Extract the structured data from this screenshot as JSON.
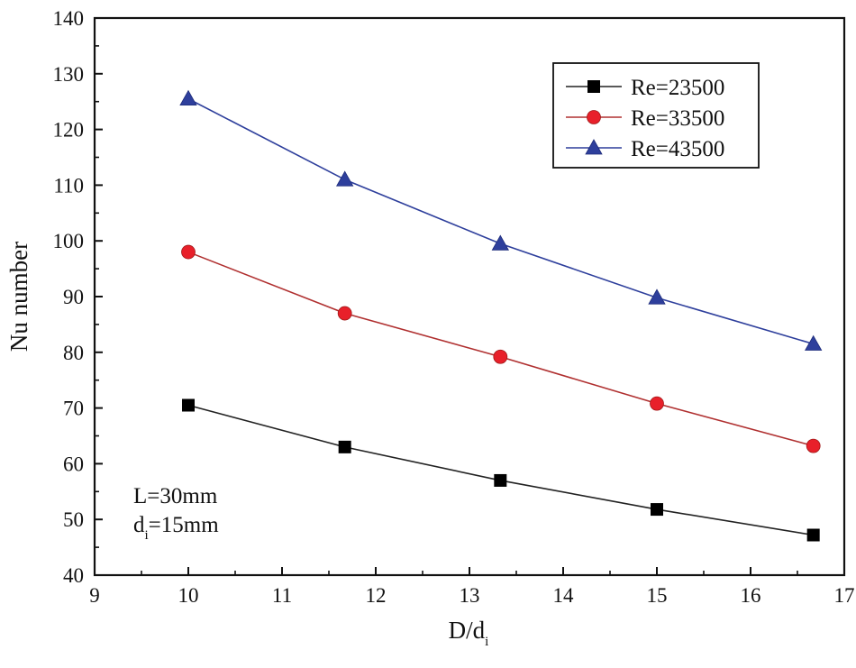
{
  "chart_data": {
    "type": "line",
    "title": "",
    "xlabel": "D/d",
    "xlabel_sub": "i",
    "ylabel": "Nu number",
    "xlim": [
      9,
      17
    ],
    "ylim": [
      40,
      140
    ],
    "xticks": [
      9,
      10,
      11,
      12,
      13,
      14,
      15,
      16,
      17
    ],
    "yticks": [
      40,
      50,
      60,
      70,
      80,
      90,
      100,
      110,
      120,
      130,
      140
    ],
    "grid": false,
    "legend_position": "top-right",
    "x": [
      10,
      11.67,
      13.33,
      15,
      16.67
    ],
    "series": [
      {
        "name": "Re=23500",
        "marker": "square",
        "color": "#000000",
        "line_color": "#222222",
        "values": [
          70.5,
          63,
          57,
          51.8,
          47.2
        ]
      },
      {
        "name": "Re=33500",
        "marker": "circle",
        "color": "#e8202a",
        "line_color": "#b03030",
        "values": [
          98,
          87,
          79.2,
          70.8,
          63.2
        ]
      },
      {
        "name": "Re=43500",
        "marker": "triangle",
        "color": "#2e3f9c",
        "line_color": "#2e3f9c",
        "values": [
          125.5,
          111,
          99.5,
          89.8,
          81.5
        ]
      }
    ],
    "annotations": [
      {
        "text": "L=30mm"
      },
      {
        "text": "d",
        "sub": "i",
        "rest": "=15mm"
      }
    ]
  }
}
